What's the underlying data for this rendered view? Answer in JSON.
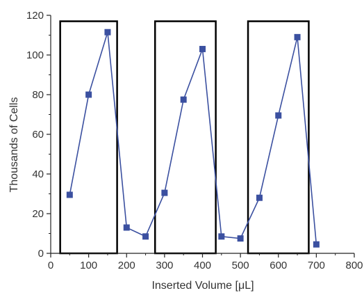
{
  "chart_data": {
    "type": "line",
    "xlabel": "Inserted Volume [μL]",
    "ylabel": "Thousands of Cells",
    "xlim": [
      0,
      800
    ],
    "ylim": [
      0,
      120
    ],
    "xticks": [
      0,
      100,
      200,
      300,
      400,
      500,
      600,
      700,
      800
    ],
    "yticks": [
      0,
      20,
      40,
      60,
      80,
      100,
      120
    ],
    "xtick_labels": [
      "0",
      "100",
      "200",
      "300",
      "400",
      "500",
      "600",
      "700",
      "800"
    ],
    "ytick_labels": [
      "0",
      "20",
      "40",
      "60",
      "80",
      "100",
      "120"
    ],
    "grid": false,
    "series": [
      {
        "x": [
          50,
          100,
          150,
          200,
          250,
          300,
          350,
          400,
          450,
          500,
          550,
          600,
          650,
          700
        ],
        "y": [
          29.5,
          80,
          111.5,
          13,
          8.5,
          30.5,
          77.5,
          103,
          8.5,
          7.5,
          28,
          69.5,
          109,
          4.5
        ],
        "color": "#3b50a0",
        "marker": "square"
      }
    ],
    "highlight_boxes": [
      {
        "x": [
          25,
          175
        ],
        "y": [
          0,
          117
        ]
      },
      {
        "x": [
          275,
          435
        ],
        "y": [
          0,
          117
        ]
      },
      {
        "x": [
          520,
          680
        ],
        "y": [
          0,
          117
        ]
      }
    ]
  }
}
